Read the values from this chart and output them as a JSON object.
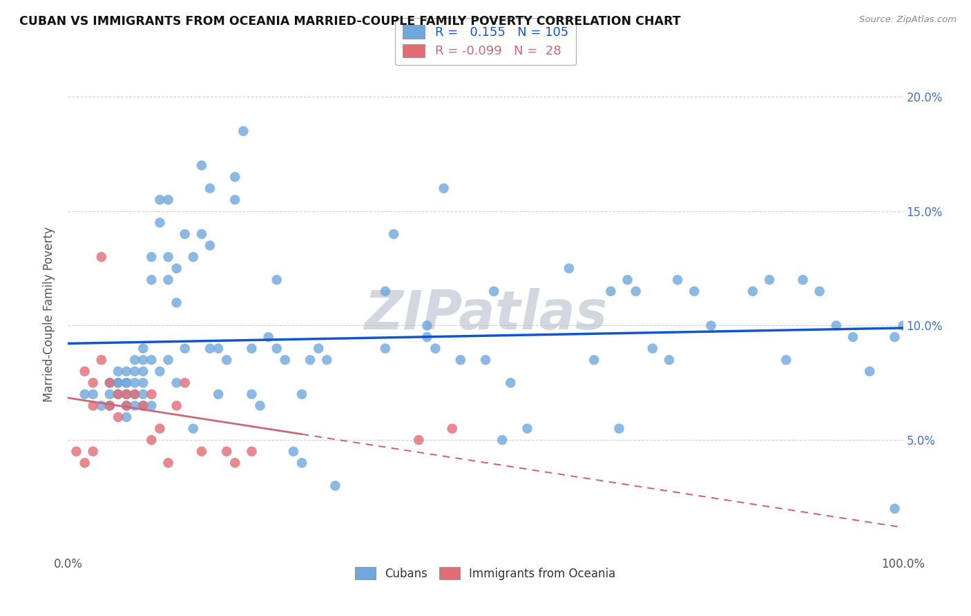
{
  "title": "CUBAN VS IMMIGRANTS FROM OCEANIA MARRIED-COUPLE FAMILY POVERTY CORRELATION CHART",
  "source": "Source: ZipAtlas.com",
  "ylabel": "Married-Couple Family Poverty",
  "r_cuban": 0.155,
  "n_cuban": 105,
  "r_oceania": -0.099,
  "n_oceania": 28,
  "cuban_color": "#6fa8dc",
  "oceania_color": "#e06c75",
  "trendline_cuban_color": "#1155cc",
  "trendline_oceania_color": "#c9687a",
  "watermark": "ZIPatlas",
  "watermark_color": "#b0b8c8",
  "background_color": "#ffffff",
  "grid_color": "#cccccc",
  "cuban_x": [
    0.02,
    0.03,
    0.04,
    0.05,
    0.05,
    0.05,
    0.06,
    0.06,
    0.06,
    0.06,
    0.07,
    0.07,
    0.07,
    0.07,
    0.07,
    0.07,
    0.08,
    0.08,
    0.08,
    0.08,
    0.08,
    0.09,
    0.09,
    0.09,
    0.09,
    0.09,
    0.09,
    0.1,
    0.1,
    0.1,
    0.1,
    0.11,
    0.11,
    0.11,
    0.12,
    0.12,
    0.12,
    0.12,
    0.13,
    0.13,
    0.13,
    0.14,
    0.14,
    0.15,
    0.15,
    0.16,
    0.16,
    0.17,
    0.17,
    0.17,
    0.18,
    0.18,
    0.19,
    0.2,
    0.2,
    0.21,
    0.22,
    0.22,
    0.23,
    0.24,
    0.25,
    0.25,
    0.26,
    0.27,
    0.28,
    0.28,
    0.29,
    0.3,
    0.31,
    0.32,
    0.38,
    0.38,
    0.39,
    0.43,
    0.43,
    0.44,
    0.45,
    0.47,
    0.5,
    0.51,
    0.52,
    0.53,
    0.55,
    0.6,
    0.63,
    0.65,
    0.66,
    0.67,
    0.68,
    0.7,
    0.72,
    0.73,
    0.75,
    0.77,
    0.82,
    0.84,
    0.86,
    0.88,
    0.9,
    0.92,
    0.94,
    0.96,
    0.99,
    0.99,
    1.0
  ],
  "cuban_y": [
    0.07,
    0.07,
    0.065,
    0.075,
    0.07,
    0.065,
    0.08,
    0.075,
    0.075,
    0.07,
    0.08,
    0.075,
    0.075,
    0.07,
    0.065,
    0.06,
    0.085,
    0.08,
    0.075,
    0.07,
    0.065,
    0.09,
    0.085,
    0.08,
    0.075,
    0.07,
    0.065,
    0.13,
    0.12,
    0.085,
    0.065,
    0.155,
    0.145,
    0.08,
    0.155,
    0.13,
    0.12,
    0.085,
    0.125,
    0.11,
    0.075,
    0.14,
    0.09,
    0.13,
    0.055,
    0.17,
    0.14,
    0.16,
    0.135,
    0.09,
    0.09,
    0.07,
    0.085,
    0.165,
    0.155,
    0.185,
    0.09,
    0.07,
    0.065,
    0.095,
    0.12,
    0.09,
    0.085,
    0.045,
    0.07,
    0.04,
    0.085,
    0.09,
    0.085,
    0.03,
    0.09,
    0.115,
    0.14,
    0.1,
    0.095,
    0.09,
    0.16,
    0.085,
    0.085,
    0.115,
    0.05,
    0.075,
    0.055,
    0.125,
    0.085,
    0.115,
    0.055,
    0.12,
    0.115,
    0.09,
    0.085,
    0.12,
    0.115,
    0.1,
    0.115,
    0.12,
    0.085,
    0.12,
    0.115,
    0.1,
    0.095,
    0.08,
    0.02,
    0.095,
    0.1
  ],
  "oceania_x": [
    0.01,
    0.02,
    0.02,
    0.03,
    0.03,
    0.03,
    0.04,
    0.04,
    0.05,
    0.05,
    0.06,
    0.06,
    0.07,
    0.07,
    0.08,
    0.09,
    0.1,
    0.1,
    0.11,
    0.12,
    0.13,
    0.14,
    0.16,
    0.19,
    0.2,
    0.22,
    0.42,
    0.46
  ],
  "oceania_y": [
    0.045,
    0.08,
    0.04,
    0.075,
    0.065,
    0.045,
    0.13,
    0.085,
    0.075,
    0.065,
    0.07,
    0.06,
    0.07,
    0.065,
    0.07,
    0.065,
    0.07,
    0.05,
    0.055,
    0.04,
    0.065,
    0.075,
    0.045,
    0.045,
    0.04,
    0.045,
    0.05,
    0.055
  ],
  "xlim": [
    0.0,
    1.0
  ],
  "ylim": [
    0.0,
    0.21
  ],
  "yticks": [
    0.0,
    0.05,
    0.1,
    0.15,
    0.2
  ],
  "yticklabels_right": [
    "",
    "5.0%",
    "10.0%",
    "15.0%",
    "20.0%"
  ],
  "xtick_left_label": "0.0%",
  "xtick_right_label": "100.0%"
}
